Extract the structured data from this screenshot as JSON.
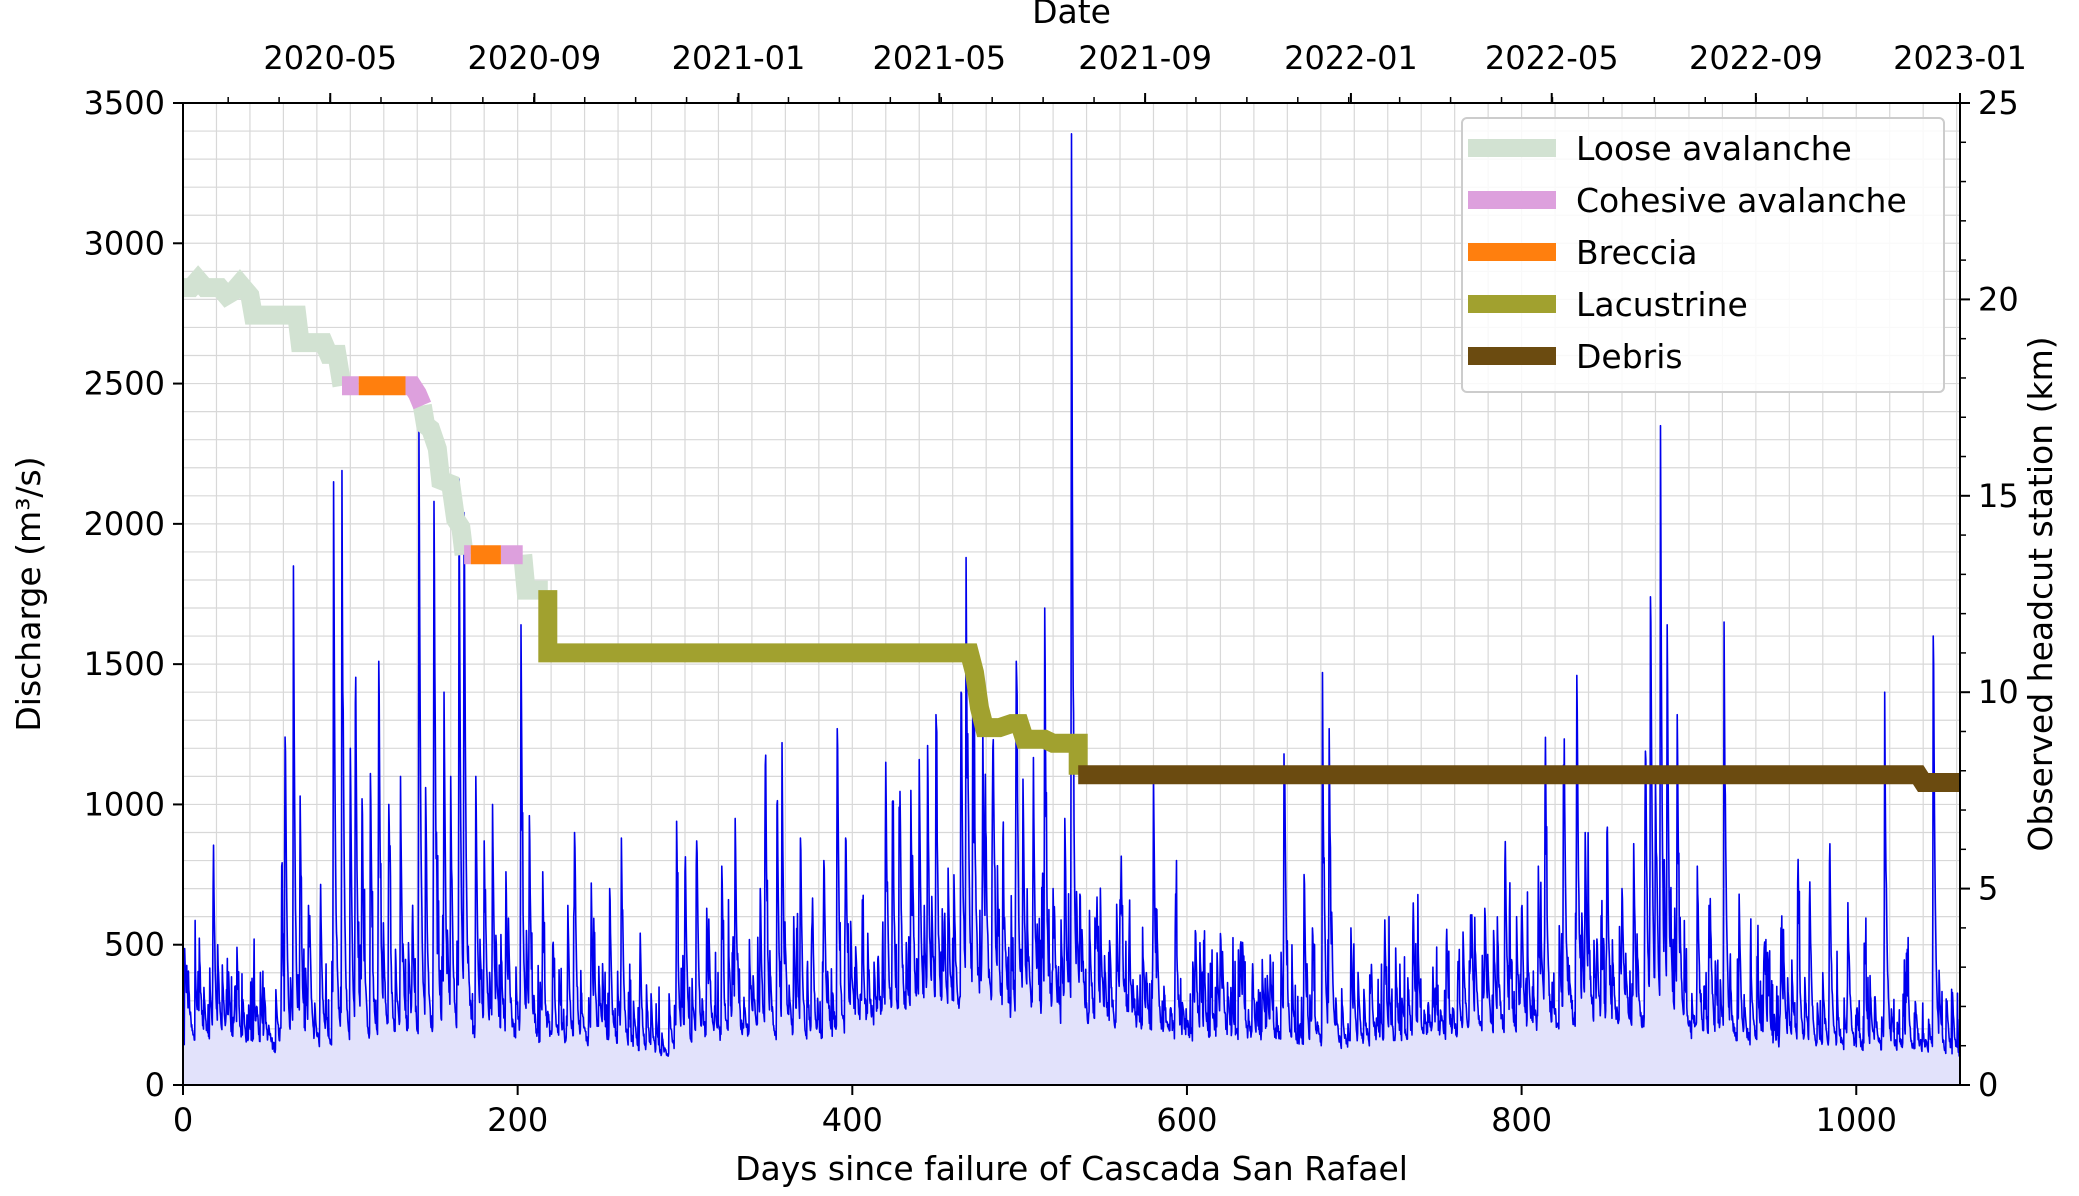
{
  "chart_data": {
    "type": "line",
    "xlabel": "Days since failure of Cascada San Rafael",
    "ylabel_left": "Discharge (m³/s)",
    "ylabel_right": "Observed headcut station (km)",
    "xlabel_top": "Date",
    "xlim": [
      0,
      1062
    ],
    "ylim_left": [
      0,
      3500
    ],
    "ylim_right": [
      0,
      25
    ],
    "grid": true,
    "legend_position": "top-right",
    "x_ticks": [
      0,
      200,
      400,
      600,
      800,
      1000
    ],
    "x_tick_labels": [
      "0",
      "200",
      "400",
      "600",
      "800",
      "1000"
    ],
    "y_left_ticks": [
      0,
      500,
      1000,
      1500,
      2000,
      2500,
      3000,
      3500
    ],
    "y_left_tick_labels": [
      "0",
      "500",
      "1000",
      "1500",
      "2000",
      "2500",
      "3000",
      "3500"
    ],
    "y_right_ticks": [
      0,
      5,
      10,
      15,
      20,
      25
    ],
    "y_right_tick_labels": [
      "0",
      "5",
      "10",
      "15",
      "20",
      "25"
    ],
    "top_ticks": [
      88,
      210,
      332,
      452,
      575,
      698,
      818,
      940,
      1062
    ],
    "top_tick_labels": [
      "2020-05",
      "2020-09",
      "2021-01",
      "2021-05",
      "2021-09",
      "2022-01",
      "2022-05",
      "2022-09",
      "2023-01"
    ],
    "discharge": {
      "name": "Discharge",
      "color": "#0000ee",
      "fill_color": "#e2e2fb",
      "baseline": [
        [
          0,
          160
        ],
        [
          40,
          140
        ],
        [
          60,
          130
        ],
        [
          100,
          150
        ],
        [
          150,
          190
        ],
        [
          200,
          170
        ],
        [
          260,
          150
        ],
        [
          285,
          100
        ],
        [
          320,
          180
        ],
        [
          360,
          170
        ],
        [
          380,
          150
        ],
        [
          400,
          200
        ],
        [
          430,
          230
        ],
        [
          460,
          250
        ],
        [
          470,
          300
        ],
        [
          500,
          250
        ],
        [
          540,
          230
        ],
        [
          580,
          180
        ],
        [
          650,
          160
        ],
        [
          700,
          130
        ],
        [
          720,
          160
        ],
        [
          760,
          180
        ],
        [
          800,
          200
        ],
        [
          840,
          230
        ],
        [
          880,
          200
        ],
        [
          930,
          160
        ],
        [
          980,
          140
        ],
        [
          1040,
          130
        ],
        [
          1062,
          110
        ]
      ],
      "spikes": [
        [
          2,
          330
        ],
        [
          9,
          240
        ],
        [
          18,
          700
        ],
        [
          26,
          340
        ],
        [
          31,
          350
        ],
        [
          44,
          280
        ],
        [
          59,
          780
        ],
        [
          61,
          1240
        ],
        [
          66,
          1850
        ],
        [
          70,
          1030
        ],
        [
          75,
          640
        ],
        [
          82,
          550
        ],
        [
          90,
          2150
        ],
        [
          95,
          2190
        ],
        [
          100,
          1200
        ],
        [
          103,
          1360
        ],
        [
          107,
          1020
        ],
        [
          112,
          1110
        ],
        [
          117,
          1510
        ],
        [
          123,
          1000
        ],
        [
          130,
          1100
        ],
        [
          137,
          560
        ],
        [
          141,
          2350
        ],
        [
          145,
          1060
        ],
        [
          150,
          2080
        ],
        [
          156,
          1400
        ],
        [
          160,
          1100
        ],
        [
          165,
          2160
        ],
        [
          168,
          2040
        ],
        [
          175,
          1100
        ],
        [
          180,
          870
        ],
        [
          185,
          1000
        ],
        [
          193,
          760
        ],
        [
          202,
          1640
        ],
        [
          207,
          960
        ],
        [
          215,
          760
        ],
        [
          221,
          500
        ],
        [
          230,
          640
        ],
        [
          234,
          900
        ],
        [
          244,
          720
        ],
        [
          255,
          700
        ],
        [
          262,
          880
        ],
        [
          273,
          390
        ],
        [
          295,
          940
        ],
        [
          300,
          760
        ],
        [
          307,
          870
        ],
        [
          313,
          630
        ],
        [
          322,
          780
        ],
        [
          330,
          950
        ],
        [
          345,
          700
        ],
        [
          348,
          1140
        ],
        [
          355,
          1000
        ],
        [
          358,
          1220
        ],
        [
          365,
          600
        ],
        [
          369,
          880
        ],
        [
          376,
          580
        ],
        [
          383,
          800
        ],
        [
          391,
          1270
        ],
        [
          396,
          880
        ],
        [
          406,
          660
        ],
        [
          420,
          1150
        ],
        [
          424,
          1010
        ],
        [
          428,
          990
        ],
        [
          435,
          1050
        ],
        [
          440,
          1160
        ],
        [
          445,
          1210
        ],
        [
          450,
          1320
        ],
        [
          455,
          580
        ],
        [
          465,
          1400
        ],
        [
          468,
          1880
        ],
        [
          472,
          1460
        ],
        [
          478,
          1280
        ],
        [
          484,
          1200
        ],
        [
          490,
          880
        ],
        [
          498,
          1510
        ],
        [
          502,
          1090
        ],
        [
          508,
          830
        ],
        [
          515,
          1700
        ],
        [
          520,
          700
        ],
        [
          527,
          950
        ],
        [
          531,
          3390
        ],
        [
          536,
          680
        ],
        [
          546,
          580
        ],
        [
          560,
          660
        ],
        [
          580,
          1110
        ],
        [
          593,
          560
        ],
        [
          605,
          550
        ],
        [
          620,
          540
        ],
        [
          632,
          500
        ],
        [
          648,
          390
        ],
        [
          658,
          1180
        ],
        [
          670,
          750
        ],
        [
          675,
          560
        ],
        [
          681,
          1470
        ],
        [
          685,
          1270
        ],
        [
          698,
          560
        ],
        [
          710,
          360
        ],
        [
          718,
          450
        ],
        [
          735,
          540
        ],
        [
          747,
          420
        ],
        [
          755,
          500
        ],
        [
          762,
          440
        ],
        [
          770,
          580
        ],
        [
          778,
          630
        ],
        [
          790,
          780
        ],
        [
          800,
          630
        ],
        [
          810,
          780
        ],
        [
          814,
          1040
        ],
        [
          825,
          1140
        ],
        [
          833,
          1460
        ],
        [
          838,
          900
        ],
        [
          845,
          520
        ],
        [
          851,
          900
        ],
        [
          860,
          700
        ],
        [
          867,
          860
        ],
        [
          874,
          1190
        ],
        [
          877,
          1740
        ],
        [
          880,
          1100
        ],
        [
          883,
          2350
        ],
        [
          887,
          1640
        ],
        [
          893,
          1320
        ],
        [
          905,
          780
        ],
        [
          912,
          640
        ],
        [
          921,
          1650
        ],
        [
          930,
          680
        ],
        [
          945,
          490
        ],
        [
          955,
          560
        ],
        [
          965,
          720
        ],
        [
          972,
          640
        ],
        [
          984,
          790
        ],
        [
          995,
          650
        ],
        [
          1005,
          480
        ],
        [
          1017,
          1400
        ],
        [
          1030,
          470
        ],
        [
          1046,
          1600
        ],
        [
          1054,
          200
        ]
      ]
    },
    "headcut_series": [
      {
        "name": "Loose avalanche",
        "color": "#d2e2d2",
        "segments": [
          [
            [
              0,
              20.3
            ],
            [
              5,
              20.3
            ],
            [
              9,
              20.5
            ],
            [
              13,
              20.3
            ],
            [
              22,
              20.3
            ],
            [
              26,
              20.1
            ],
            [
              30,
              20.2
            ],
            [
              34,
              20.4
            ],
            [
              40,
              20.1
            ],
            [
              42,
              19.6
            ],
            [
              68,
              19.6
            ],
            [
              70,
              18.9
            ],
            [
              84,
              18.9
            ],
            [
              87,
              18.6
            ],
            [
              92,
              18.6
            ],
            [
              95,
              17.8
            ]
          ],
          [
            [
              143,
              17.3
            ],
            [
              145,
              16.8
            ],
            [
              148,
              16.7
            ],
            [
              152,
              16.2
            ],
            [
              154,
              15.4
            ],
            [
              160,
              15.3
            ],
            [
              163,
              14.4
            ],
            [
              166,
              14.2
            ],
            [
              168,
              13.5
            ]
          ],
          [
            [
              203,
              13.5
            ],
            [
              205,
              12.6
            ],
            [
              218,
              12.6
            ]
          ]
        ]
      },
      {
        "name": "Cohesive avalanche",
        "color": "#dda0dd",
        "segments": [
          [
            [
              95,
              17.8
            ],
            [
              105,
              17.8
            ]
          ],
          [
            [
              133,
              17.8
            ],
            [
              137,
              17.8
            ],
            [
              140,
              17.6
            ],
            [
              143,
              17.3
            ]
          ],
          [
            [
              168,
              13.5
            ],
            [
              172,
              13.5
            ]
          ],
          [
            [
              190,
              13.5
            ],
            [
              203,
              13.5
            ]
          ]
        ]
      },
      {
        "name": "Breccia",
        "color": "#ff7f0e",
        "segments": [
          [
            [
              105,
              17.8
            ],
            [
              133,
              17.8
            ]
          ],
          [
            [
              172,
              13.5
            ],
            [
              190,
              13.5
            ]
          ]
        ]
      },
      {
        "name": "Lacustrine",
        "color": "#a1a12f",
        "segments": [
          [
            [
              218,
              12.6
            ],
            [
              218,
              11.0
            ],
            [
              470,
              11.0
            ],
            [
              473,
              10.5
            ],
            [
              476,
              9.6
            ],
            [
              479,
              9.1
            ],
            [
              488,
              9.1
            ],
            [
              495,
              9.2
            ],
            [
              500,
              9.2
            ],
            [
              503,
              8.8
            ],
            [
              512,
              8.8
            ],
            [
              515,
              8.8
            ],
            [
              520,
              8.7
            ],
            [
              535,
              8.7
            ],
            [
              535,
              7.9
            ]
          ]
        ]
      },
      {
        "name": "Debris",
        "color": "#6b4b10",
        "segments": [
          [
            [
              535,
              7.9
            ],
            [
              1037,
              7.9
            ],
            [
              1040,
              7.7
            ],
            [
              1062,
              7.7
            ]
          ]
        ]
      }
    ],
    "legend": [
      "Loose avalanche",
      "Cohesive avalanche",
      "Breccia",
      "Lacustrine",
      "Debris"
    ]
  }
}
